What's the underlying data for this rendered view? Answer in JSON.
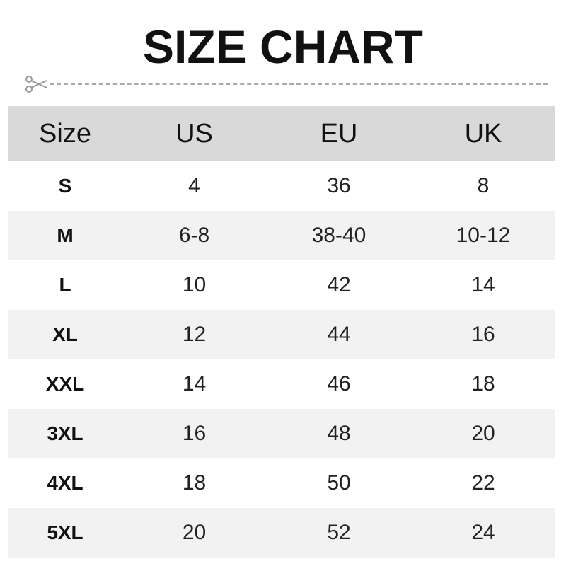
{
  "title": "SIZE CHART",
  "icons": {
    "cut": "scissors-icon"
  },
  "colors": {
    "header_bg": "#d9d9d9",
    "alt_row_bg": "#f2f2f2"
  },
  "headers": [
    "Size",
    "US",
    "EU",
    "UK"
  ],
  "rows": [
    [
      "S",
      "4",
      "36",
      "8"
    ],
    [
      "M",
      "6-8",
      "38-40",
      "10-12"
    ],
    [
      "L",
      "10",
      "42",
      "14"
    ],
    [
      "XL",
      "12",
      "44",
      "16"
    ],
    [
      "XXL",
      "14",
      "46",
      "18"
    ],
    [
      "3XL",
      "16",
      "48",
      "20"
    ],
    [
      "4XL",
      "18",
      "50",
      "22"
    ],
    [
      "5XL",
      "20",
      "52",
      "24"
    ]
  ]
}
